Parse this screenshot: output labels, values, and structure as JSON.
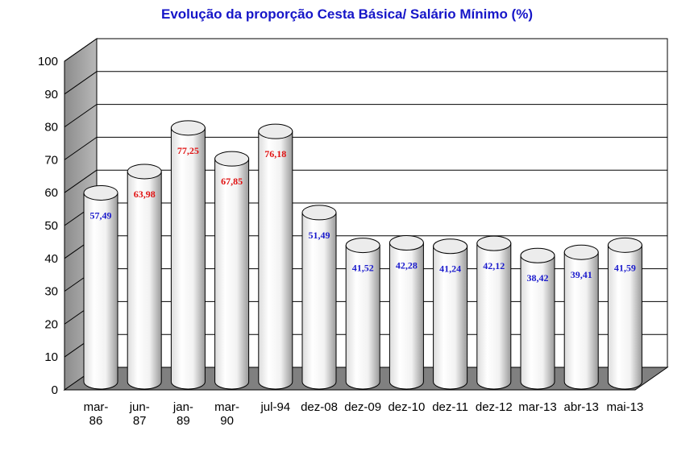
{
  "chart_data": {
    "type": "bar",
    "title": "Evolução da proporção Cesta Básica/ Salário Mínimo (%)",
    "xlabel": "",
    "ylabel": "",
    "ylim": [
      0,
      100
    ],
    "yticks": [
      0,
      10,
      20,
      30,
      40,
      50,
      60,
      70,
      80,
      90,
      100
    ],
    "grid": true,
    "categories": [
      [
        "mar-",
        "86"
      ],
      [
        "jun-",
        "87"
      ],
      [
        "jan-",
        "89"
      ],
      [
        "mar-",
        "90"
      ],
      [
        "jul-94"
      ],
      [
        "dez-08"
      ],
      [
        "dez-09"
      ],
      [
        "dez-10"
      ],
      [
        "dez-11"
      ],
      [
        "dez-12"
      ],
      [
        "mar-13"
      ],
      [
        "abr-13"
      ],
      [
        "mai-13"
      ]
    ],
    "values": [
      57.49,
      63.98,
      77.25,
      67.85,
      76.18,
      51.49,
      41.52,
      42.28,
      41.24,
      42.12,
      38.42,
      39.41,
      41.59
    ],
    "data_labels": [
      "57,49",
      "63,98",
      "77,25",
      "67,85",
      "76,18",
      "51,49",
      "41,52",
      "42,28",
      "41,24",
      "42,12",
      "38,42",
      "39,41",
      "41,59"
    ],
    "label_colors": [
      "#1a1acc",
      "#e01010",
      "#e01010",
      "#e01010",
      "#e01010",
      "#1a1acc",
      "#1a1acc",
      "#1a1acc",
      "#1a1acc",
      "#1a1acc",
      "#1a1acc",
      "#1a1acc",
      "#1a1acc"
    ]
  },
  "colors": {
    "title": "#1616c8",
    "wall_side": "#a6a6a6",
    "floor": "#808080"
  }
}
